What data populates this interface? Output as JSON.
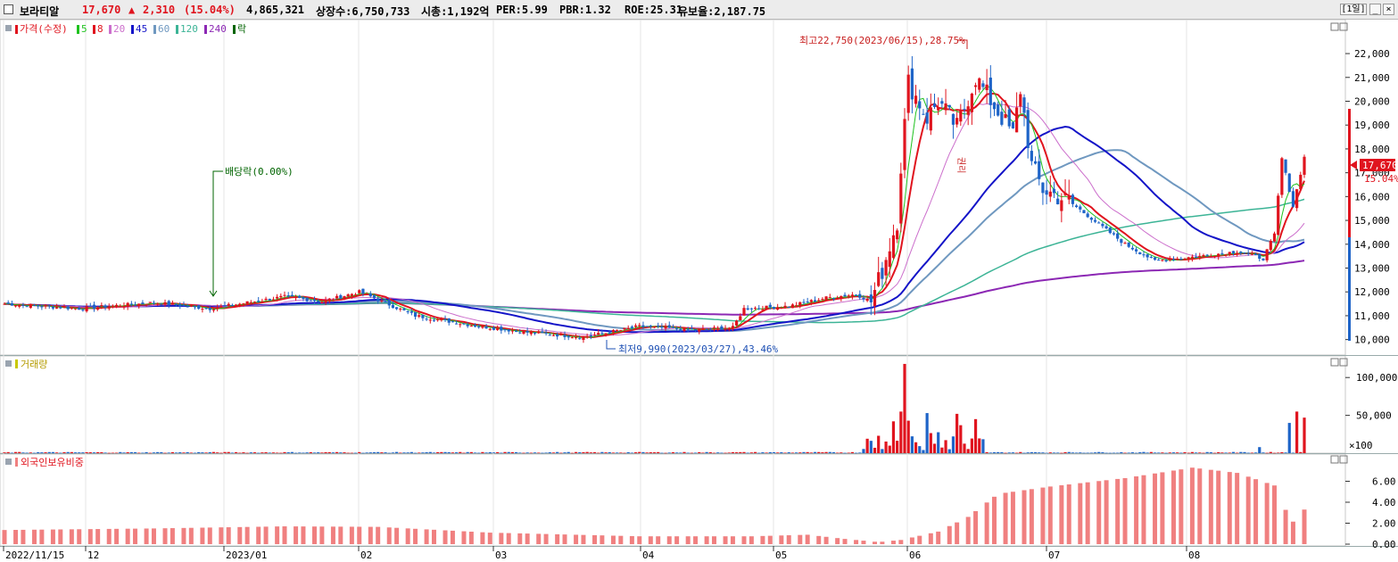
{
  "header": {
    "stock_name": "보라티알",
    "price": "17,670",
    "change_arrow": "▲",
    "change": "2,310",
    "change_pct": "(15.04%)",
    "volume": "4,865,321",
    "listed_shares": "상장수:6,750,733",
    "market_cap": "시총:1,192억",
    "per": "PER:5.99",
    "pbr": "PBR:1.32",
    "roe": "ROE:25.31",
    "float_rate": "유보율:2,187.75",
    "period_button": "[1일]",
    "min_button": "_",
    "close_button": "×"
  },
  "legend": {
    "price": "가격(수정)",
    "ma": [
      {
        "label": "5",
        "color": "#1fc21f"
      },
      {
        "label": "8",
        "color": "#e0141e"
      },
      {
        "label": "20",
        "color": "#cc6fcc"
      },
      {
        "label": "45",
        "color": "#1414c8"
      },
      {
        "label": "60",
        "color": "#6f98c0"
      },
      {
        "label": "120",
        "color": "#3cb496"
      },
      {
        "label": "240",
        "color": "#8c28b4"
      }
    ],
    "ex_right": "락"
  },
  "annotations": {
    "high": "최고22,750(2023/06/15),28.75%",
    "low": "최저9,990(2023/03/27),43.46%",
    "dividend": "배당락(0.00%)",
    "rights": "권리"
  },
  "current": {
    "price_label": "17,670",
    "pct_label": "15.04%"
  },
  "panels": {
    "volume_title": "거래량",
    "foreign_title": "외국인보유비중",
    "volume_unit": "×100"
  },
  "colors": {
    "up": "#e0141e",
    "down": "#1e64c8",
    "foreign_bar": "#f08080"
  },
  "chart_data": [
    {
      "type": "candlestick",
      "y_ticks": [
        "22,000",
        "21,000",
        "20,000",
        "19,000",
        "18,000",
        "17,000",
        "16,000",
        "15,000",
        "14,000",
        "13,000",
        "12,000",
        "11,000",
        "10,000"
      ],
      "ylim": [
        9500,
        23200
      ],
      "x_ticks": [
        "2022/11/15",
        "12",
        "2023/01",
        "02",
        "03",
        "04",
        "05",
        "06",
        "07",
        "08"
      ],
      "high": {
        "value": 22750,
        "date": "2023/06/15"
      },
      "low": {
        "value": 9990,
        "date": "2023/03/27"
      },
      "last_close": 17670
    },
    {
      "type": "bar",
      "title": "거래량",
      "y_ticks": [
        "100,000",
        "50,000"
      ],
      "ylim": [
        0,
        125000
      ]
    },
    {
      "type": "bar",
      "title": "외국인보유비중",
      "y_ticks": [
        "6.00",
        "4.00",
        "2.00",
        "0.00"
      ],
      "ylim": [
        0,
        8
      ]
    }
  ]
}
